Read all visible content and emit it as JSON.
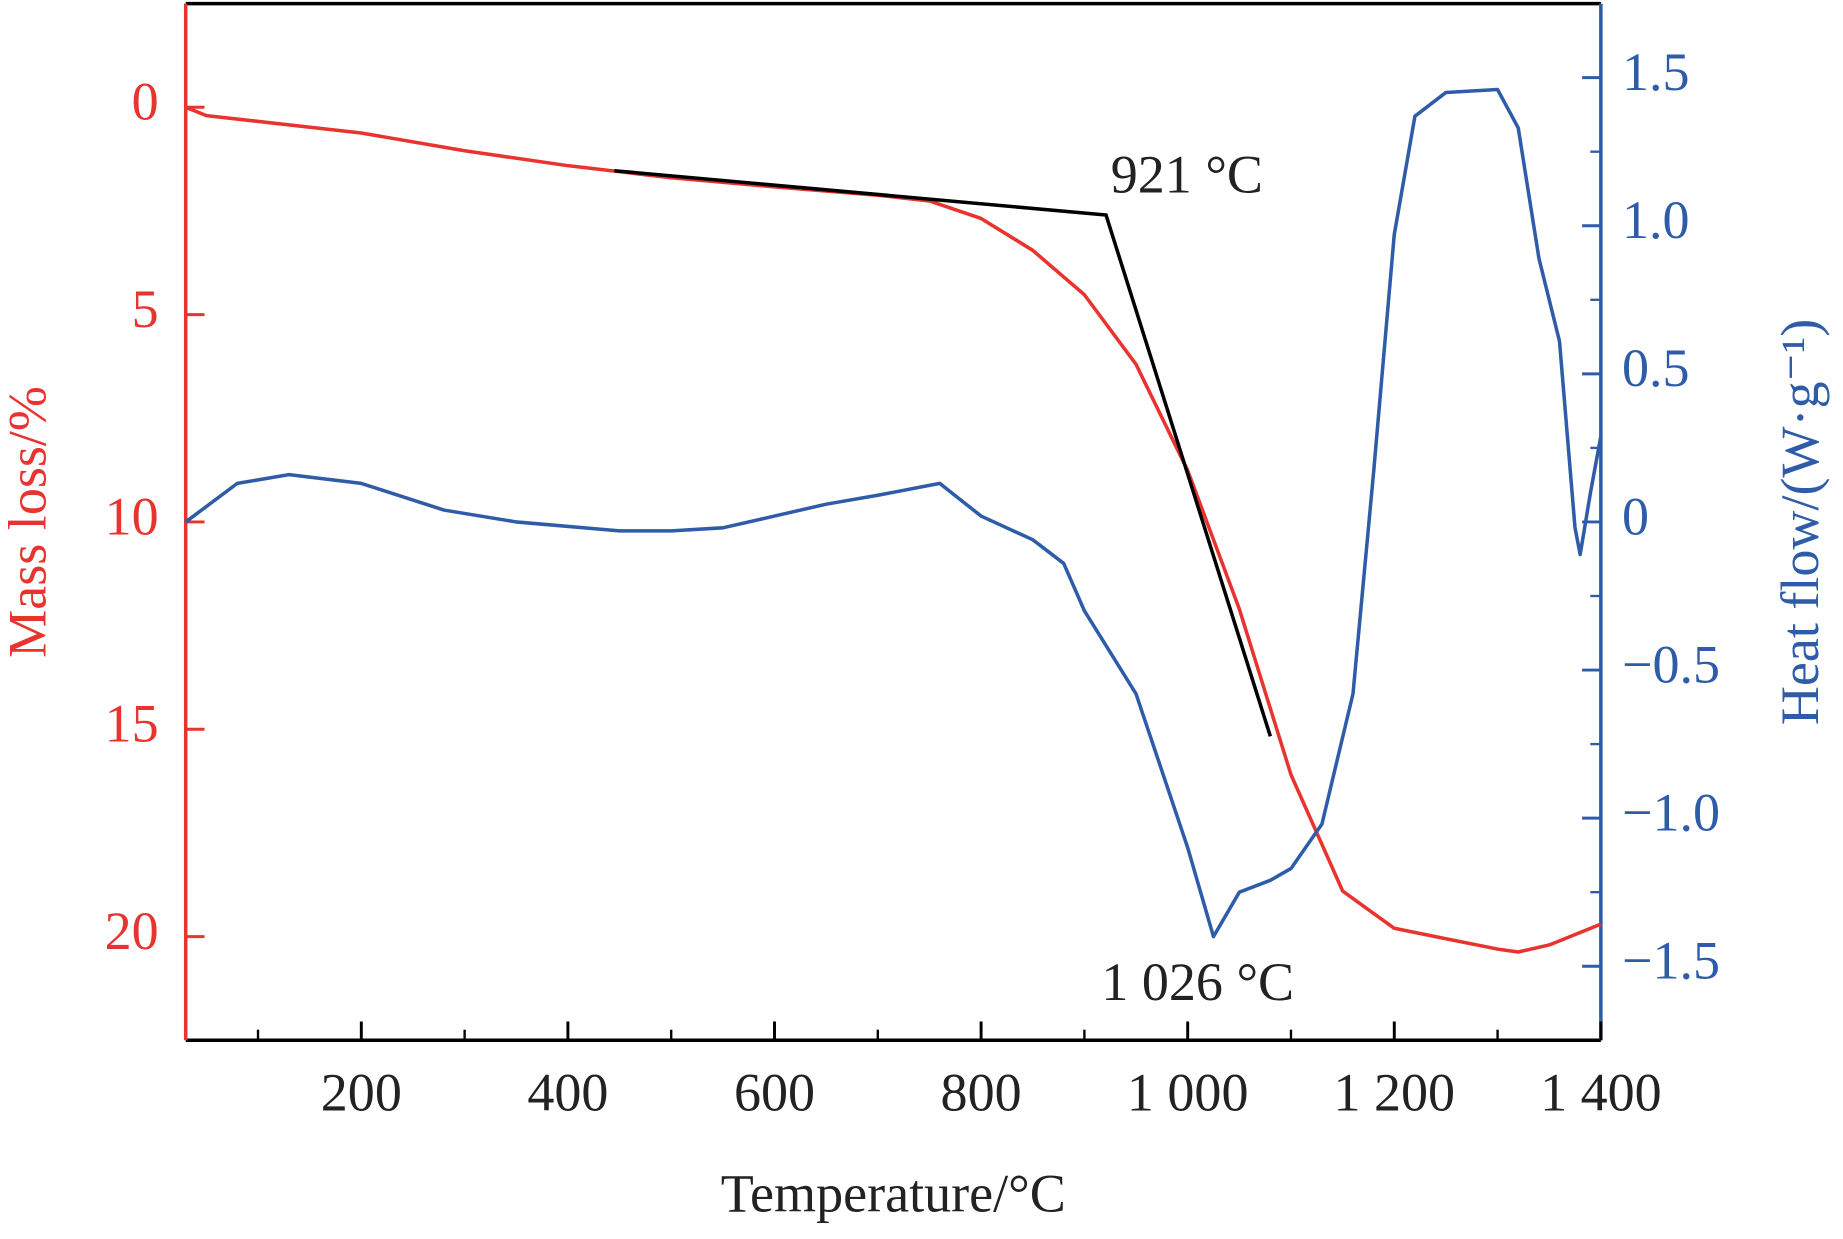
{
  "chart_data": {
    "type": "line",
    "xlabel": "Temperature/°C",
    "ylabel": "Mass loss/%",
    "y2label": "Heat flow/(W·g⁻¹)",
    "xlim": [
      30,
      1400
    ],
    "xticks": [
      200,
      400,
      600,
      800,
      {
        "value": 1000,
        "label": "1 000"
      },
      {
        "value": 1200,
        "label": "1 200"
      },
      {
        "value": 1400,
        "label": "1 400"
      }
    ],
    "xminorticks": [
      100,
      300,
      500,
      700,
      900,
      1100,
      1300
    ],
    "ylim": [
      -2.5,
      22.5
    ],
    "y_inverted": true,
    "yticks": [
      0,
      5,
      10,
      15,
      20
    ],
    "y2lim": [
      -1.75,
      1.75
    ],
    "y2ticks": [
      {
        "value": -1.5,
        "label": "−1.5"
      },
      {
        "value": -1.0,
        "label": "−1.0"
      },
      {
        "value": -0.5,
        "label": "−0.5"
      },
      0,
      0.5,
      {
        "value": 1.0,
        "label": "1.0"
      },
      1.5
    ],
    "y2minorticks": [
      -1.25,
      -0.75,
      -0.25,
      0.25,
      0.75,
      1.25
    ],
    "ycolor": "#e8332f",
    "y2color": "#2f5ca8",
    "series": [
      {
        "name": "Mass loss",
        "color": "#e8332f",
        "x": [
          30,
          50,
          200,
          300,
          400,
          500,
          600,
          700,
          750,
          800,
          850,
          900,
          950,
          1000,
          1050,
          1100,
          1150,
          1200,
          1250,
          1300,
          1320,
          1350,
          1400
        ],
        "values": [
          0,
          0.2,
          0.62,
          1.05,
          1.41,
          1.7,
          1.92,
          2.12,
          2.26,
          2.68,
          3.45,
          4.52,
          6.2,
          8.76,
          12.1,
          16.1,
          18.9,
          19.8,
          20.05,
          20.3,
          20.37,
          20.2,
          19.7
        ]
      },
      {
        "name": "Heat flow",
        "color": "#2f5ca8",
        "axis": "y2",
        "x": [
          30,
          80,
          130,
          200,
          280,
          350,
          450,
          500,
          550,
          600,
          650,
          700,
          760,
          800,
          850,
          880,
          900,
          950,
          1000,
          1025,
          1050,
          1080,
          1100,
          1130,
          1160,
          1180,
          1200,
          1220,
          1250,
          1300,
          1320,
          1340,
          1360,
          1375,
          1380,
          1390,
          1400
        ],
        "values": [
          0,
          0.13,
          0.16,
          0.13,
          0.04,
          0,
          -0.03,
          -0.03,
          -0.02,
          0.02,
          0.06,
          0.09,
          0.13,
          0.02,
          -0.06,
          -0.14,
          -0.3,
          -0.58,
          -1.1,
          -1.4,
          -1.25,
          -1.21,
          -1.17,
          -1.02,
          -0.58,
          0.17,
          0.97,
          1.37,
          1.45,
          1.46,
          1.33,
          0.89,
          0.61,
          -0.02,
          -0.11,
          0.1,
          0.29
        ]
      }
    ],
    "tangents": {
      "color": "#000000",
      "x": [
        445,
        921,
        1080
      ],
      "values": [
        1.53,
        2.6,
        15.17
      ]
    },
    "annotations": [
      "921 °C",
      "1 026 °C"
    ]
  }
}
